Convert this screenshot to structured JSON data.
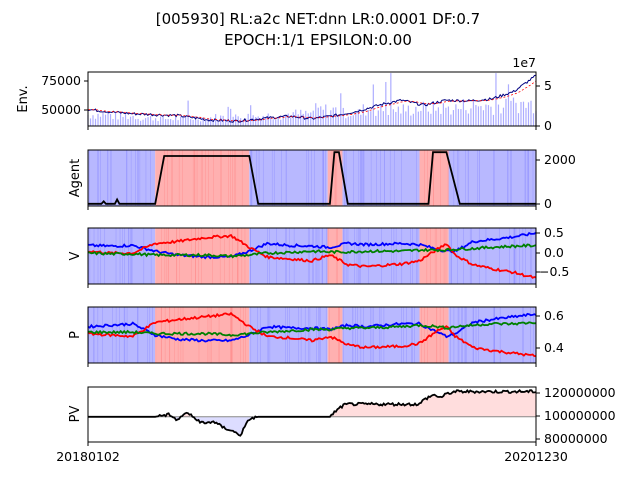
{
  "title": {
    "line1": "[005930] RL:a2c NET:dnn LR:0.0001 DF:0.7",
    "line2": "EPOCH:1/1 EPSILON:0.00"
  },
  "colors": {
    "buy": "#ff0000",
    "sell": "#0000ff",
    "hold": "#008000",
    "price": "#000080",
    "ma": "#ff0000",
    "pv_line": "#000000",
    "pv_gain": "#ffb3b3",
    "pv_loss": "#b3b3ff"
  },
  "chart_data": [
    {
      "panel": "env",
      "type": "line",
      "ylabel": "Env.",
      "yticks": [
        "75000",
        "50000"
      ],
      "y2ticks": [
        "5",
        "0"
      ],
      "y2_offset": "1e7",
      "ylim": [
        38000,
        82000
      ],
      "y2lim": [
        0,
        7
      ],
      "x_keyframes": [
        0,
        0.05,
        0.1,
        0.2,
        0.27,
        0.33,
        0.4,
        0.45,
        0.5,
        0.56,
        0.6,
        0.66,
        0.7,
        0.75,
        0.8,
        0.85,
        0.9,
        0.95,
        1.0
      ],
      "price_keyframes": [
        51500,
        49500,
        48000,
        46500,
        43000,
        42000,
        44500,
        46000,
        44000,
        47000,
        50000,
        56000,
        59000,
        55000,
        59000,
        58500,
        60000,
        66000,
        79000
      ],
      "volume_level": [
        1.4,
        1.2,
        1.0,
        0.9,
        1.0,
        1.1,
        1.2,
        1.3,
        1.5,
        2.0,
        1.6,
        2.0,
        2.0,
        2.2,
        2.2,
        2.5,
        2.4,
        2.7
      ]
    },
    {
      "panel": "agent",
      "type": "step",
      "ylabel": "Agent",
      "yticks": [
        "2000",
        "0"
      ],
      "ylim": [
        -100,
        2500
      ],
      "segments": [
        {
          "from": 0,
          "to": 0.15,
          "action": "sell"
        },
        {
          "from": 0.15,
          "to": 0.36,
          "action": "buy"
        },
        {
          "from": 0.36,
          "to": 0.535,
          "action": "sell"
        },
        {
          "from": 0.535,
          "to": 0.568,
          "action": "buy"
        },
        {
          "from": 0.568,
          "to": 0.74,
          "action": "sell"
        },
        {
          "from": 0.74,
          "to": 0.805,
          "action": "buy"
        },
        {
          "from": 0.805,
          "to": 1.0,
          "action": "sell"
        }
      ],
      "stocks_x": [
        0,
        0.03,
        0.035,
        0.04,
        0.06,
        0.065,
        0.07,
        0.15,
        0.17,
        0.36,
        0.38,
        0.54,
        0.55,
        0.56,
        0.58,
        0.76,
        0.77,
        0.8,
        0.83,
        1.0
      ],
      "stocks_y": [
        0,
        0,
        120,
        0,
        0,
        200,
        0,
        0,
        2220,
        2220,
        0,
        0,
        2400,
        2400,
        0,
        0,
        2400,
        2400,
        0,
        0
      ]
    },
    {
      "panel": "value",
      "type": "line",
      "ylabel": "V",
      "yticks": [
        "0.5",
        "0.0",
        "−0.5"
      ],
      "ylim": [
        -0.8,
        0.65
      ],
      "x": [
        0,
        0.05,
        0.1,
        0.15,
        0.2,
        0.26,
        0.32,
        0.36,
        0.4,
        0.45,
        0.5,
        0.54,
        0.58,
        0.62,
        0.7,
        0.74,
        0.78,
        0.8,
        0.82,
        0.86,
        0.9,
        0.95,
        1.0
      ],
      "series": [
        {
          "role": "sell",
          "values": [
            0.2,
            0.18,
            0.2,
            0.05,
            -0.05,
            -0.1,
            -0.1,
            0.05,
            0.25,
            0.2,
            0.18,
            0.15,
            0.25,
            0.22,
            0.25,
            0.22,
            0.1,
            0.05,
            0.05,
            0.3,
            0.35,
            0.42,
            0.52
          ]
        },
        {
          "role": "buy",
          "values": [
            0.05,
            0.0,
            0.0,
            0.25,
            0.3,
            0.4,
            0.45,
            0.15,
            -0.1,
            -0.15,
            -0.2,
            -0.05,
            -0.3,
            -0.35,
            -0.28,
            -0.2,
            0.1,
            0.25,
            -0.05,
            -0.3,
            -0.4,
            -0.5,
            -0.65
          ]
        },
        {
          "role": "hold",
          "values": [
            0.0,
            -0.02,
            -0.02,
            -0.05,
            -0.05,
            -0.05,
            -0.08,
            -0.05,
            0.0,
            0.02,
            0.05,
            0.03,
            0.03,
            0.05,
            0.05,
            0.08,
            0.08,
            0.08,
            0.1,
            0.12,
            0.15,
            0.18,
            0.2
          ]
        }
      ]
    },
    {
      "panel": "policy",
      "type": "line",
      "ylabel": "P",
      "yticks": [
        "0.6",
        "0.4"
      ],
      "ylim": [
        0.27,
        0.67
      ],
      "x": [
        0,
        0.05,
        0.1,
        0.15,
        0.2,
        0.26,
        0.32,
        0.36,
        0.4,
        0.45,
        0.5,
        0.54,
        0.58,
        0.62,
        0.7,
        0.74,
        0.78,
        0.8,
        0.82,
        0.86,
        0.9,
        0.95,
        1.0
      ],
      "series": [
        {
          "role": "sell",
          "values": [
            0.53,
            0.54,
            0.55,
            0.47,
            0.44,
            0.43,
            0.43,
            0.47,
            0.53,
            0.52,
            0.52,
            0.51,
            0.54,
            0.53,
            0.55,
            0.55,
            0.49,
            0.46,
            0.48,
            0.56,
            0.58,
            0.6,
            0.62
          ]
        },
        {
          "role": "buy",
          "values": [
            0.48,
            0.47,
            0.46,
            0.56,
            0.58,
            0.6,
            0.62,
            0.53,
            0.46,
            0.45,
            0.43,
            0.46,
            0.4,
            0.38,
            0.39,
            0.41,
            0.5,
            0.53,
            0.46,
            0.38,
            0.36,
            0.34,
            0.32
          ]
        },
        {
          "role": "hold",
          "values": [
            0.49,
            0.49,
            0.49,
            0.48,
            0.48,
            0.48,
            0.47,
            0.48,
            0.49,
            0.5,
            0.51,
            0.51,
            0.52,
            0.52,
            0.53,
            0.54,
            0.53,
            0.52,
            0.53,
            0.54,
            0.55,
            0.55,
            0.56
          ]
        }
      ]
    },
    {
      "panel": "pv",
      "type": "area",
      "ylabel": "PV",
      "yticks": [
        "120000000",
        "100000000",
        "80000000"
      ],
      "ylim": [
        78000000,
        126000000
      ],
      "baseline": 100000000,
      "x": [
        0,
        0.15,
        0.18,
        0.2,
        0.22,
        0.24,
        0.26,
        0.28,
        0.3,
        0.32,
        0.34,
        0.36,
        0.38,
        0.54,
        0.55,
        0.57,
        0.58,
        0.74,
        0.75,
        0.77,
        0.79,
        0.8,
        0.82,
        1.0
      ],
      "values": [
        100000000,
        100000000,
        102000000,
        97000000,
        104000000,
        98000000,
        94000000,
        96000000,
        91000000,
        88000000,
        84000000,
        98000000,
        100000000,
        100000000,
        104000000,
        110000000,
        111000000,
        111000000,
        115000000,
        119000000,
        117000000,
        120000000,
        122000000,
        122000000
      ]
    }
  ],
  "x_axis": {
    "start_label": "20180102",
    "end_label": "20201230"
  }
}
